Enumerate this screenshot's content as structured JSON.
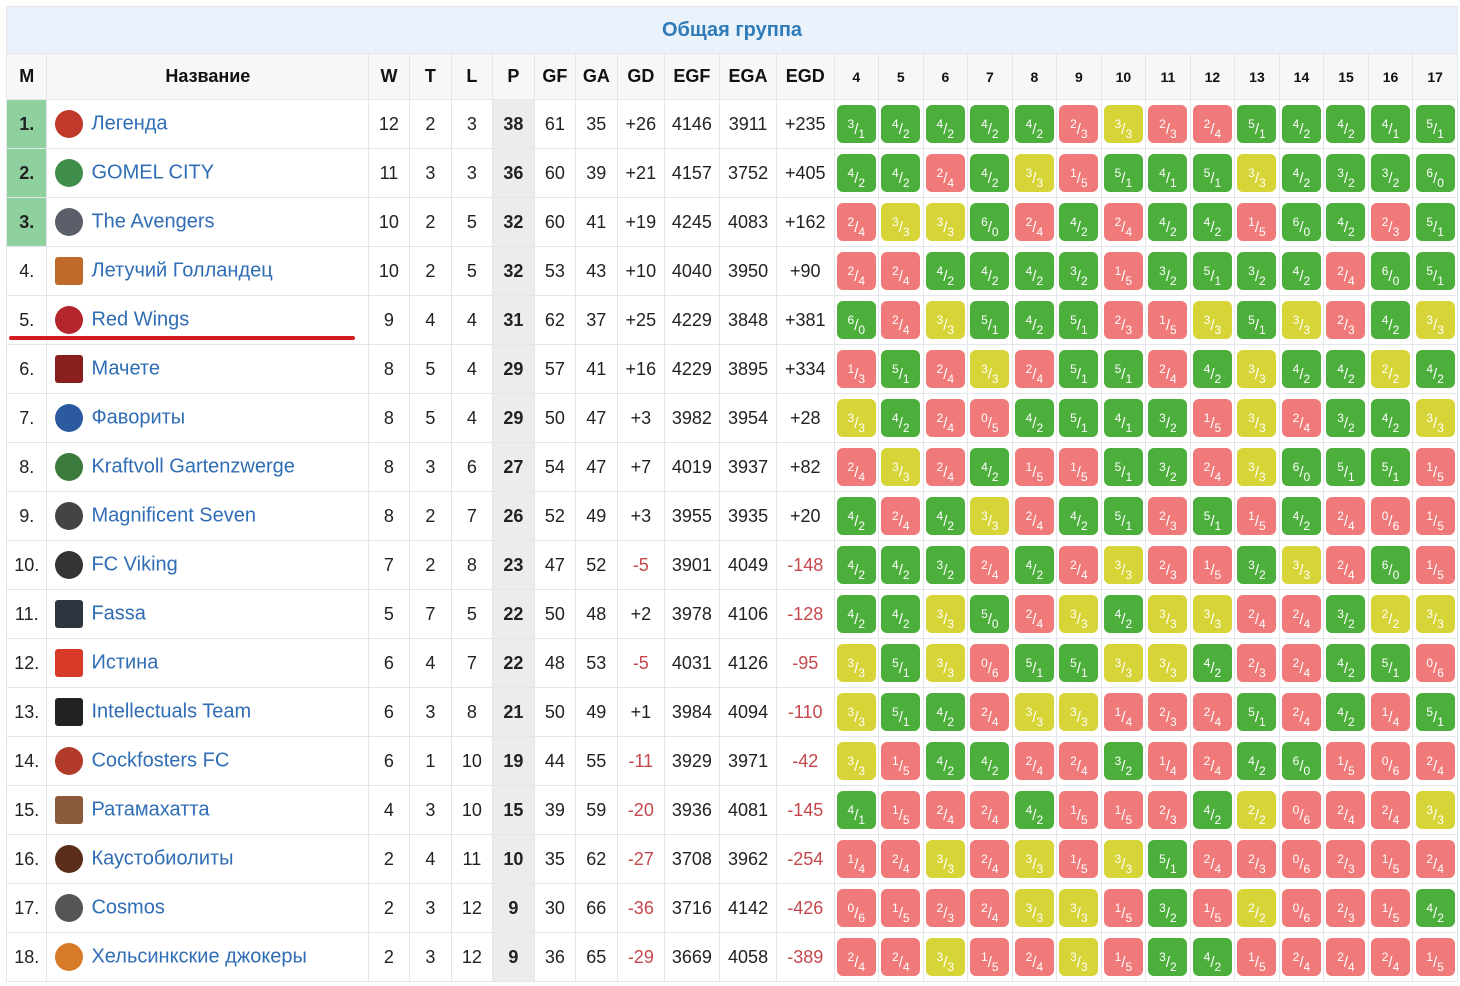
{
  "title": "Общая группа",
  "headers": {
    "pos": "М",
    "name": "Название",
    "w": "W",
    "t": "T",
    "l": "L",
    "p": "P",
    "gf": "GF",
    "ga": "GA",
    "gd": "GD",
    "egf": "EGF",
    "ega": "EGA",
    "egd": "EGD",
    "rounds": [
      "4",
      "5",
      "6",
      "7",
      "8",
      "9",
      "10",
      "11",
      "12",
      "13",
      "14",
      "15",
      "16",
      "17"
    ]
  },
  "colors": {
    "win": "#4caf3c",
    "draw": "#d6d437",
    "loss": "#f07a79",
    "promotion": "#8fd19e",
    "cut_line": "#d11a22",
    "link": "#2f6db5"
  },
  "teams": [
    {
      "pos": "1.",
      "name": "Легенда",
      "logo": "legend-crest-icon",
      "w": "12",
      "t": "2",
      "l": "3",
      "p": "38",
      "gf": "61",
      "ga": "35",
      "gd": "+26",
      "egf": "4146",
      "ega": "3911",
      "egd": "+235",
      "results": [
        [
          "3",
          "1"
        ],
        [
          "4",
          "2"
        ],
        [
          "4",
          "2"
        ],
        [
          "4",
          "2"
        ],
        [
          "4",
          "2"
        ],
        [
          "2",
          "3"
        ],
        [
          "3",
          "3"
        ],
        [
          "2",
          "3"
        ],
        [
          "2",
          "4"
        ],
        [
          "5",
          "1"
        ],
        [
          "4",
          "2"
        ],
        [
          "4",
          "2"
        ],
        [
          "4",
          "1"
        ],
        [
          "5",
          "1"
        ]
      ]
    },
    {
      "pos": "2.",
      "name": "GOMEL CITY",
      "logo": "gomel-city-crest-icon",
      "w": "11",
      "t": "3",
      "l": "3",
      "p": "36",
      "gf": "60",
      "ga": "39",
      "gd": "+21",
      "egf": "4157",
      "ega": "3752",
      "egd": "+405",
      "results": [
        [
          "4",
          "2"
        ],
        [
          "4",
          "2"
        ],
        [
          "2",
          "4"
        ],
        [
          "4",
          "2"
        ],
        [
          "3",
          "3"
        ],
        [
          "1",
          "5"
        ],
        [
          "5",
          "1"
        ],
        [
          "4",
          "1"
        ],
        [
          "5",
          "1"
        ],
        [
          "3",
          "3"
        ],
        [
          "4",
          "2"
        ],
        [
          "3",
          "2"
        ],
        [
          "3",
          "2"
        ],
        [
          "6",
          "0"
        ]
      ]
    },
    {
      "pos": "3.",
      "name": "The Avengers",
      "logo": "avengers-logo-icon",
      "w": "10",
      "t": "2",
      "l": "5",
      "p": "32",
      "gf": "60",
      "ga": "41",
      "gd": "+19",
      "egf": "4245",
      "ega": "4083",
      "egd": "+162",
      "results": [
        [
          "2",
          "4"
        ],
        [
          "3",
          "3"
        ],
        [
          "3",
          "3"
        ],
        [
          "6",
          "0"
        ],
        [
          "2",
          "4"
        ],
        [
          "4",
          "2"
        ],
        [
          "2",
          "4"
        ],
        [
          "4",
          "2"
        ],
        [
          "4",
          "2"
        ],
        [
          "1",
          "5"
        ],
        [
          "6",
          "0"
        ],
        [
          "4",
          "2"
        ],
        [
          "2",
          "3"
        ],
        [
          "5",
          "1"
        ]
      ]
    },
    {
      "pos": "4.",
      "name": "Летучий Голландец",
      "logo": "flying-dutchman-icon",
      "w": "10",
      "t": "2",
      "l": "5",
      "p": "32",
      "gf": "53",
      "ga": "43",
      "gd": "+10",
      "egf": "4040",
      "ega": "3950",
      "egd": "+90",
      "results": [
        [
          "2",
          "4"
        ],
        [
          "2",
          "4"
        ],
        [
          "4",
          "2"
        ],
        [
          "4",
          "2"
        ],
        [
          "4",
          "2"
        ],
        [
          "3",
          "2"
        ],
        [
          "1",
          "5"
        ],
        [
          "3",
          "2"
        ],
        [
          "5",
          "1"
        ],
        [
          "3",
          "2"
        ],
        [
          "4",
          "2"
        ],
        [
          "2",
          "4"
        ],
        [
          "6",
          "0"
        ],
        [
          "5",
          "1"
        ]
      ]
    },
    {
      "pos": "5.",
      "name": "Red Wings",
      "logo": "red-wings-icon",
      "w": "9",
      "t": "4",
      "l": "4",
      "p": "31",
      "gf": "62",
      "ga": "37",
      "gd": "+25",
      "egf": "4229",
      "ega": "3848",
      "egd": "+381",
      "results": [
        [
          "6",
          "0"
        ],
        [
          "2",
          "4"
        ],
        [
          "3",
          "3"
        ],
        [
          "5",
          "1"
        ],
        [
          "4",
          "2"
        ],
        [
          "5",
          "1"
        ],
        [
          "2",
          "3"
        ],
        [
          "1",
          "5"
        ],
        [
          "3",
          "3"
        ],
        [
          "5",
          "1"
        ],
        [
          "3",
          "3"
        ],
        [
          "2",
          "3"
        ],
        [
          "4",
          "2"
        ],
        [
          "3",
          "3"
        ]
      ]
    },
    {
      "pos": "6.",
      "name": "Мачете",
      "logo": "machete-icon",
      "w": "8",
      "t": "5",
      "l": "4",
      "p": "29",
      "gf": "57",
      "ga": "41",
      "gd": "+16",
      "egf": "4229",
      "ega": "3895",
      "egd": "+334",
      "results": [
        [
          "1",
          "3"
        ],
        [
          "5",
          "1"
        ],
        [
          "2",
          "4"
        ],
        [
          "3",
          "3"
        ],
        [
          "2",
          "4"
        ],
        [
          "5",
          "1"
        ],
        [
          "5",
          "1"
        ],
        [
          "2",
          "4"
        ],
        [
          "4",
          "2"
        ],
        [
          "3",
          "3"
        ],
        [
          "4",
          "2"
        ],
        [
          "4",
          "2"
        ],
        [
          "2",
          "2"
        ],
        [
          "4",
          "2"
        ]
      ]
    },
    {
      "pos": "7.",
      "name": "Фавориты",
      "logo": "favorites-icon",
      "w": "8",
      "t": "5",
      "l": "4",
      "p": "29",
      "gf": "50",
      "ga": "47",
      "gd": "+3",
      "egf": "3982",
      "ega": "3954",
      "egd": "+28",
      "results": [
        [
          "3",
          "3"
        ],
        [
          "4",
          "2"
        ],
        [
          "2",
          "4"
        ],
        [
          "0",
          "5"
        ],
        [
          "4",
          "2"
        ],
        [
          "5",
          "1"
        ],
        [
          "4",
          "1"
        ],
        [
          "3",
          "2"
        ],
        [
          "1",
          "5"
        ],
        [
          "3",
          "3"
        ],
        [
          "2",
          "4"
        ],
        [
          "3",
          "2"
        ],
        [
          "4",
          "2"
        ],
        [
          "3",
          "3"
        ]
      ]
    },
    {
      "pos": "8.",
      "name": "Kraftvoll Gartenzwerge",
      "logo": "gnome-icon",
      "w": "8",
      "t": "3",
      "l": "6",
      "p": "27",
      "gf": "54",
      "ga": "47",
      "gd": "+7",
      "egf": "4019",
      "ega": "3937",
      "egd": "+82",
      "results": [
        [
          "2",
          "4"
        ],
        [
          "3",
          "3"
        ],
        [
          "2",
          "4"
        ],
        [
          "4",
          "2"
        ],
        [
          "1",
          "5"
        ],
        [
          "1",
          "5"
        ],
        [
          "5",
          "1"
        ],
        [
          "3",
          "2"
        ],
        [
          "2",
          "4"
        ],
        [
          "3",
          "3"
        ],
        [
          "6",
          "0"
        ],
        [
          "5",
          "1"
        ],
        [
          "5",
          "1"
        ],
        [
          "1",
          "5"
        ]
      ]
    },
    {
      "pos": "9.",
      "name": "Magnificent Seven",
      "logo": "magnificent-seven-icon",
      "w": "8",
      "t": "2",
      "l": "7",
      "p": "26",
      "gf": "52",
      "ga": "49",
      "gd": "+3",
      "egf": "3955",
      "ega": "3935",
      "egd": "+20",
      "results": [
        [
          "4",
          "2"
        ],
        [
          "2",
          "4"
        ],
        [
          "4",
          "2"
        ],
        [
          "3",
          "3"
        ],
        [
          "2",
          "4"
        ],
        [
          "4",
          "2"
        ],
        [
          "5",
          "1"
        ],
        [
          "2",
          "3"
        ],
        [
          "5",
          "1"
        ],
        [
          "1",
          "5"
        ],
        [
          "4",
          "2"
        ],
        [
          "2",
          "4"
        ],
        [
          "0",
          "6"
        ],
        [
          "1",
          "5"
        ]
      ]
    },
    {
      "pos": "10.",
      "name": "FC Viking",
      "logo": "viking-crest-icon",
      "w": "7",
      "t": "2",
      "l": "8",
      "p": "23",
      "gf": "47",
      "ga": "52",
      "gd": "-5",
      "egf": "3901",
      "ega": "4049",
      "egd": "-148",
      "results": [
        [
          "4",
          "2"
        ],
        [
          "4",
          "2"
        ],
        [
          "3",
          "2"
        ],
        [
          "2",
          "4"
        ],
        [
          "4",
          "2"
        ],
        [
          "2",
          "4"
        ],
        [
          "3",
          "3"
        ],
        [
          "2",
          "3"
        ],
        [
          "1",
          "5"
        ],
        [
          "3",
          "2"
        ],
        [
          "3",
          "3"
        ],
        [
          "2",
          "4"
        ],
        [
          "6",
          "0"
        ],
        [
          "1",
          "5"
        ]
      ]
    },
    {
      "pos": "11.",
      "name": "Fassa",
      "logo": "fassa-icon",
      "w": "5",
      "t": "7",
      "l": "5",
      "p": "22",
      "gf": "50",
      "ga": "48",
      "gd": "+2",
      "egf": "3978",
      "ega": "4106",
      "egd": "-128",
      "results": [
        [
          "4",
          "2"
        ],
        [
          "4",
          "2"
        ],
        [
          "3",
          "3"
        ],
        [
          "5",
          "0"
        ],
        [
          "2",
          "4"
        ],
        [
          "3",
          "3"
        ],
        [
          "4",
          "2"
        ],
        [
          "3",
          "3"
        ],
        [
          "3",
          "3"
        ],
        [
          "2",
          "4"
        ],
        [
          "2",
          "4"
        ],
        [
          "3",
          "2"
        ],
        [
          "2",
          "2"
        ],
        [
          "3",
          "3"
        ]
      ]
    },
    {
      "pos": "12.",
      "name": "Истина",
      "logo": "truth-icon",
      "w": "6",
      "t": "4",
      "l": "7",
      "p": "22",
      "gf": "48",
      "ga": "53",
      "gd": "-5",
      "egf": "4031",
      "ega": "4126",
      "egd": "-95",
      "results": [
        [
          "3",
          "3"
        ],
        [
          "5",
          "1"
        ],
        [
          "3",
          "3"
        ],
        [
          "0",
          "6"
        ],
        [
          "5",
          "1"
        ],
        [
          "5",
          "1"
        ],
        [
          "3",
          "3"
        ],
        [
          "3",
          "3"
        ],
        [
          "4",
          "2"
        ],
        [
          "2",
          "3"
        ],
        [
          "2",
          "4"
        ],
        [
          "4",
          "2"
        ],
        [
          "5",
          "1"
        ],
        [
          "0",
          "6"
        ]
      ]
    },
    {
      "pos": "13.",
      "name": "Intellectuals Team",
      "logo": "intellectuals-icon",
      "w": "6",
      "t": "3",
      "l": "8",
      "p": "21",
      "gf": "50",
      "ga": "49",
      "gd": "+1",
      "egf": "3984",
      "ega": "4094",
      "egd": "-110",
      "results": [
        [
          "3",
          "3"
        ],
        [
          "5",
          "1"
        ],
        [
          "4",
          "2"
        ],
        [
          "2",
          "4"
        ],
        [
          "3",
          "3"
        ],
        [
          "3",
          "3"
        ],
        [
          "1",
          "4"
        ],
        [
          "2",
          "3"
        ],
        [
          "2",
          "4"
        ],
        [
          "5",
          "1"
        ],
        [
          "2",
          "4"
        ],
        [
          "4",
          "2"
        ],
        [
          "1",
          "4"
        ],
        [
          "5",
          "1"
        ]
      ]
    },
    {
      "pos": "14.",
      "name": "Cockfosters FC",
      "logo": "cockfosters-crest-icon",
      "w": "6",
      "t": "1",
      "l": "10",
      "p": "19",
      "gf": "44",
      "ga": "55",
      "gd": "-11",
      "egf": "3929",
      "ega": "3971",
      "egd": "-42",
      "results": [
        [
          "3",
          "3"
        ],
        [
          "1",
          "5"
        ],
        [
          "4",
          "2"
        ],
        [
          "4",
          "2"
        ],
        [
          "2",
          "4"
        ],
        [
          "2",
          "4"
        ],
        [
          "3",
          "2"
        ],
        [
          "1",
          "4"
        ],
        [
          "2",
          "4"
        ],
        [
          "4",
          "2"
        ],
        [
          "6",
          "0"
        ],
        [
          "1",
          "5"
        ],
        [
          "0",
          "6"
        ],
        [
          "2",
          "4"
        ]
      ]
    },
    {
      "pos": "15.",
      "name": "Ратамахатта",
      "logo": "ratamahatta-icon",
      "w": "4",
      "t": "3",
      "l": "10",
      "p": "15",
      "gf": "39",
      "ga": "59",
      "gd": "-20",
      "egf": "3936",
      "ega": "4081",
      "egd": "-145",
      "results": [
        [
          "4",
          "1"
        ],
        [
          "1",
          "5"
        ],
        [
          "2",
          "4"
        ],
        [
          "2",
          "4"
        ],
        [
          "4",
          "2"
        ],
        [
          "1",
          "5"
        ],
        [
          "1",
          "5"
        ],
        [
          "2",
          "3"
        ],
        [
          "4",
          "2"
        ],
        [
          "2",
          "2"
        ],
        [
          "0",
          "6"
        ],
        [
          "2",
          "4"
        ],
        [
          "2",
          "4"
        ],
        [
          "3",
          "3"
        ]
      ]
    },
    {
      "pos": "16.",
      "name": "Каустобиолиты",
      "logo": "caustobiolites-icon",
      "w": "2",
      "t": "4",
      "l": "11",
      "p": "10",
      "gf": "35",
      "ga": "62",
      "gd": "-27",
      "egf": "3708",
      "ega": "3962",
      "egd": "-254",
      "results": [
        [
          "1",
          "4"
        ],
        [
          "2",
          "4"
        ],
        [
          "3",
          "3"
        ],
        [
          "2",
          "4"
        ],
        [
          "3",
          "3"
        ],
        [
          "1",
          "5"
        ],
        [
          "3",
          "3"
        ],
        [
          "5",
          "1"
        ],
        [
          "2",
          "4"
        ],
        [
          "2",
          "3"
        ],
        [
          "0",
          "6"
        ],
        [
          "2",
          "3"
        ],
        [
          "1",
          "5"
        ],
        [
          "2",
          "4"
        ]
      ]
    },
    {
      "pos": "17.",
      "name": "Cosmos",
      "logo": "cosmos-icon",
      "w": "2",
      "t": "3",
      "l": "12",
      "p": "9",
      "gf": "30",
      "ga": "66",
      "gd": "-36",
      "egf": "3716",
      "ega": "4142",
      "egd": "-426",
      "results": [
        [
          "0",
          "6"
        ],
        [
          "1",
          "5"
        ],
        [
          "2",
          "3"
        ],
        [
          "2",
          "4"
        ],
        [
          "3",
          "3"
        ],
        [
          "3",
          "3"
        ],
        [
          "1",
          "5"
        ],
        [
          "3",
          "2"
        ],
        [
          "1",
          "5"
        ],
        [
          "2",
          "2"
        ],
        [
          "0",
          "6"
        ],
        [
          "2",
          "3"
        ],
        [
          "1",
          "5"
        ],
        [
          "4",
          "2"
        ]
      ]
    },
    {
      "pos": "18.",
      "name": "Хельсинкские джокеры",
      "logo": "helsinki-jokers-icon",
      "w": "2",
      "t": "3",
      "l": "12",
      "p": "9",
      "gf": "36",
      "ga": "65",
      "gd": "-29",
      "egf": "3669",
      "ega": "4058",
      "egd": "-389",
      "results": [
        [
          "2",
          "4"
        ],
        [
          "2",
          "4"
        ],
        [
          "3",
          "3"
        ],
        [
          "1",
          "5"
        ],
        [
          "2",
          "4"
        ],
        [
          "3",
          "3"
        ],
        [
          "1",
          "5"
        ],
        [
          "3",
          "2"
        ],
        [
          "4",
          "2"
        ],
        [
          "1",
          "5"
        ],
        [
          "2",
          "4"
        ],
        [
          "2",
          "4"
        ],
        [
          "2",
          "4"
        ],
        [
          "1",
          "5"
        ]
      ]
    }
  ]
}
